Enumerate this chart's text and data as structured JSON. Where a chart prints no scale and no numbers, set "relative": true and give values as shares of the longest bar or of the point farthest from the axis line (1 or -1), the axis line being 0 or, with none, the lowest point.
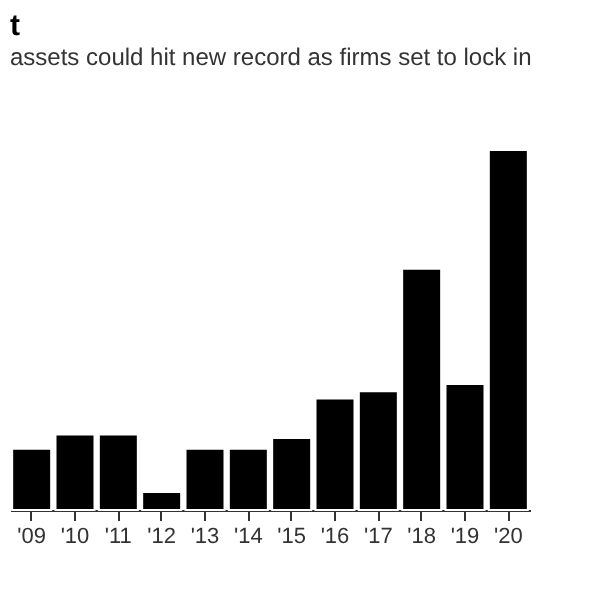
{
  "chart_data": {
    "type": "bar",
    "title": "t",
    "subtitle": "assets could hit new record as firms set to lock in",
    "categories": [
      "'09",
      "'10",
      "'11",
      "'12",
      "'13",
      "'14",
      "'15",
      "'16",
      "'17",
      "'18",
      "'19",
      "'20"
    ],
    "values": [
      0.17,
      0.21,
      0.21,
      0.05,
      0.17,
      0.17,
      0.2,
      0.31,
      0.33,
      0.67,
      0.35,
      1
    ],
    "color": "#000000",
    "relative": true,
    "grid": false
  }
}
